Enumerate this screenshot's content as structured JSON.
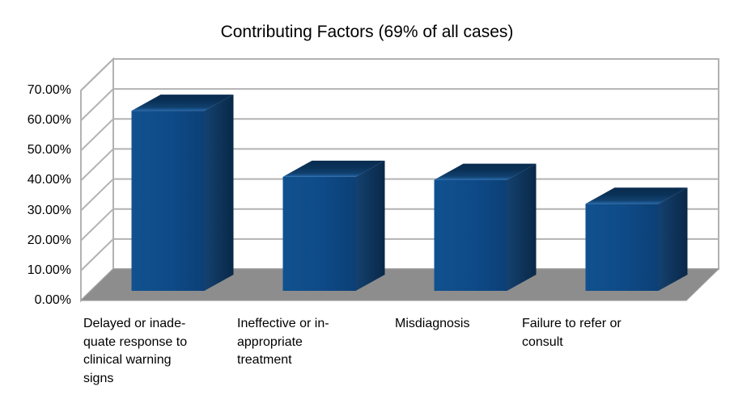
{
  "title": "Contributing Factors (69% of all cases)",
  "chart_data": {
    "type": "bar",
    "style": "3d-column",
    "title": "Contributing Factors (69% of all cases)",
    "categories": [
      "Delayed or inadequate response to clinical warning signs",
      "Ineffective or inappropriate treatment",
      "Misdiagnosis",
      "Failure to refer or consult"
    ],
    "category_label_lines": [
      [
        "Delayed or inade-",
        "quate response to",
        "clinical warning",
        "signs"
      ],
      [
        "Ineffective or in-",
        "appropriate",
        "treatment"
      ],
      [
        "Misdiagnosis"
      ],
      [
        "Failure to refer or",
        "consult"
      ]
    ],
    "values": [
      60,
      38,
      37,
      29
    ],
    "unit": "%",
    "ylabel": "",
    "xlabel": "",
    "ylim": [
      0,
      70
    ],
    "ytick_step": 10,
    "ytick_labels": [
      "0.00%",
      "10.00%",
      "20.00%",
      "30.00%",
      "40.00%",
      "50.00%",
      "60.00%",
      "70.00%"
    ],
    "legend": "none",
    "grid": true,
    "colors": {
      "bar_front": "#0e4c8b",
      "bar_side_dark": "#092848",
      "bar_top": "#0a3157",
      "bar_front_edge_highlight": "#2568ab",
      "floor": "#8d8d8d",
      "wall": "#ffffff",
      "gridline": "#b2b2b2",
      "text": "#000000",
      "background": "#ffffff"
    }
  }
}
